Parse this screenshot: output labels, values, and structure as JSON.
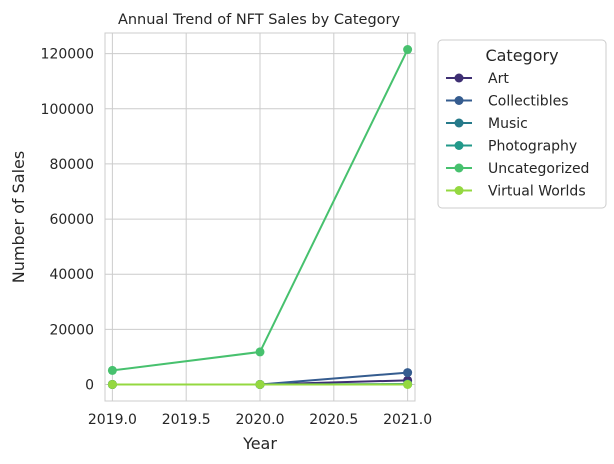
{
  "chart_data": {
    "type": "line",
    "title": "Annual Trend of NFT Sales by Category",
    "xlabel": "Year",
    "ylabel": "Number of Sales",
    "xlim": [
      2018.95,
      2021.05
    ],
    "ylim": [
      -6000,
      127500
    ],
    "x_ticks": [
      2019.0,
      2019.5,
      2020.0,
      2020.5,
      2021.0
    ],
    "x_tick_labels": [
      "2019.0",
      "2019.5",
      "2020.0",
      "2020.5",
      "2021.0"
    ],
    "y_ticks": [
      0,
      20000,
      40000,
      60000,
      80000,
      100000,
      120000
    ],
    "y_tick_labels": [
      "0",
      "20000",
      "40000",
      "60000",
      "80000",
      "100000",
      "120000"
    ],
    "grid": true,
    "legend": {
      "title": "Category",
      "placement": "outside-right-top"
    },
    "x": [
      2019,
      2020,
      2021
    ],
    "series": [
      {
        "name": "Art",
        "color": "#3e2f73",
        "values": [
          0,
          0,
          1500
        ]
      },
      {
        "name": "Collectibles",
        "color": "#355c8f",
        "values": [
          0,
          0,
          4300
        ]
      },
      {
        "name": "Music",
        "color": "#267a8a",
        "values": [
          0,
          0,
          100
        ]
      },
      {
        "name": "Photography",
        "color": "#22998a",
        "values": [
          0,
          0,
          100
        ]
      },
      {
        "name": "Uncategorized",
        "color": "#47c16e",
        "values": [
          5100,
          11800,
          121500
        ]
      },
      {
        "name": "Virtual Worlds",
        "color": "#94d840",
        "values": [
          0,
          0,
          0
        ]
      }
    ]
  }
}
